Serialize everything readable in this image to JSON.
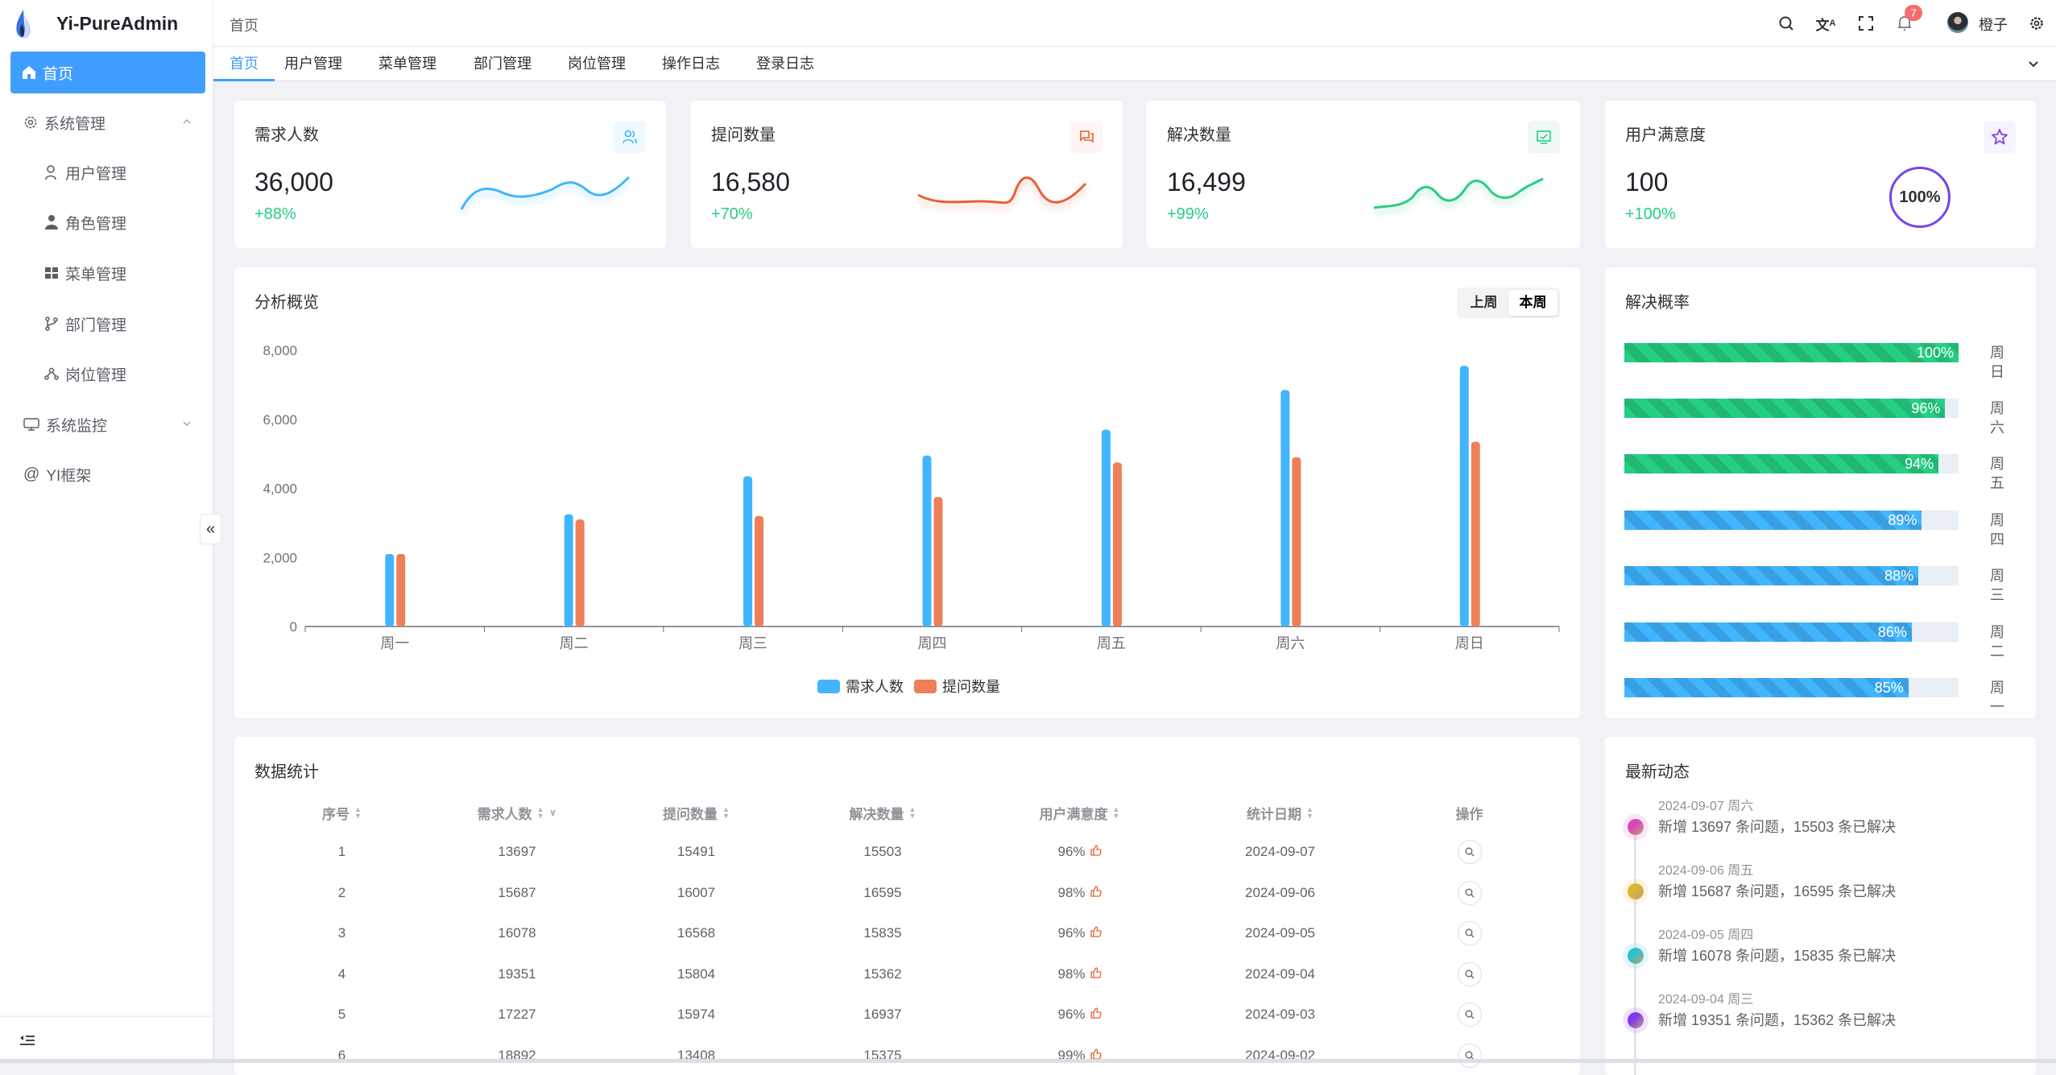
{
  "app": {
    "title": "Yi-PureAdmin"
  },
  "sidebar": {
    "items": [
      {
        "label": "首页",
        "icon": "home-icon",
        "active": true
      },
      {
        "label": "系统管理",
        "icon": "gear-icon",
        "expanded": true
      },
      {
        "label": "用户管理",
        "icon": "user-icon"
      },
      {
        "label": "角色管理",
        "icon": "role-icon"
      },
      {
        "label": "菜单管理",
        "icon": "grid-icon"
      },
      {
        "label": "部门管理",
        "icon": "branch-icon"
      },
      {
        "label": "岗位管理",
        "icon": "network-icon"
      },
      {
        "label": "系统监控",
        "icon": "monitor-icon",
        "expanded": false
      },
      {
        "label": "YI框架",
        "icon": "at-icon"
      }
    ],
    "collapse_icon": "double-chevron-left-icon",
    "footer_icon": "menu-fold-icon"
  },
  "header": {
    "breadcrumb": "首页",
    "notifications": "7",
    "username": "橙子",
    "icons": [
      "search-icon",
      "translate-icon",
      "fullscreen-icon",
      "bell-icon",
      "avatar",
      "settings-icon"
    ]
  },
  "tabs": [
    {
      "label": "首页",
      "active": true
    },
    {
      "label": "用户管理"
    },
    {
      "label": "菜单管理"
    },
    {
      "label": "部门管理"
    },
    {
      "label": "岗位管理"
    },
    {
      "label": "操作日志"
    },
    {
      "label": "登录日志"
    }
  ],
  "stats": [
    {
      "title": "需求人数",
      "value": "36,000",
      "delta": "+88%",
      "color": "#41b6ff",
      "icon": "users-icon"
    },
    {
      "title": "提问数量",
      "value": "16,580",
      "delta": "+70%",
      "color": "#e85f33",
      "icon": "chat-icon"
    },
    {
      "title": "解决数量",
      "value": "16,499",
      "delta": "+99%",
      "color": "#26ce83",
      "icon": "check-chart-icon"
    },
    {
      "title": "用户满意度",
      "value": "100",
      "delta": "+100%",
      "color": "#7846e5",
      "icon": "star-icon",
      "ring": "100%"
    }
  ],
  "overview": {
    "title": "分析概览",
    "toggle": [
      {
        "label": "上周"
      },
      {
        "label": "本周",
        "active": true
      }
    ]
  },
  "chart_data": {
    "type": "bar",
    "categories": [
      "周一",
      "周二",
      "周三",
      "周四",
      "周五",
      "周六",
      "周日"
    ],
    "series": [
      {
        "name": "需求人数",
        "color": "#41b6ff",
        "values": [
          2100,
          3250,
          4350,
          4950,
          5700,
          6850,
          7550
        ]
      },
      {
        "name": "提问数量",
        "color": "#ed8057",
        "values": [
          2100,
          3100,
          3200,
          3750,
          4750,
          4900,
          5350
        ]
      }
    ],
    "yticks": [
      "0",
      "2,000",
      "4,000",
      "6,000",
      "8,000"
    ],
    "ylim": [
      0,
      8000
    ],
    "legend": "bottom",
    "grid": false
  },
  "solve_rate": {
    "title": "解决概率",
    "rows": [
      {
        "day": "周日",
        "pct": "100%",
        "value": 100,
        "color": "#26ce83"
      },
      {
        "day": "周六",
        "pct": "96%",
        "value": 96,
        "color": "#26ce83"
      },
      {
        "day": "周五",
        "pct": "94%",
        "value": 94,
        "color": "#26ce83"
      },
      {
        "day": "周四",
        "pct": "89%",
        "value": 89,
        "color": "#41b6ff"
      },
      {
        "day": "周三",
        "pct": "88%",
        "value": 88,
        "color": "#41b6ff"
      },
      {
        "day": "周二",
        "pct": "86%",
        "value": 86,
        "color": "#41b6ff"
      },
      {
        "day": "周一",
        "pct": "85%",
        "value": 85,
        "color": "#41b6ff"
      }
    ]
  },
  "table": {
    "title": "数据统计",
    "columns": [
      "序号",
      "需求人数",
      "提问数量",
      "解决数量",
      "用户满意度",
      "统计日期",
      "操作"
    ],
    "rows": [
      [
        "1",
        "13697",
        "15491",
        "15503",
        "96%",
        "2024-09-07"
      ],
      [
        "2",
        "15687",
        "16007",
        "16595",
        "98%",
        "2024-09-06"
      ],
      [
        "3",
        "16078",
        "16568",
        "15835",
        "96%",
        "2024-09-05"
      ],
      [
        "4",
        "19351",
        "15804",
        "15362",
        "98%",
        "2024-09-04"
      ],
      [
        "5",
        "17227",
        "15974",
        "16937",
        "96%",
        "2024-09-03"
      ],
      [
        "6",
        "18892",
        "13408",
        "15375",
        "99%",
        "2024-09-02"
      ]
    ]
  },
  "activity": {
    "title": "最新动态",
    "items": [
      {
        "date": "2024-09-07 周六",
        "text": "新增 13697 条问题，15503 条已解决",
        "color": "#d946b6"
      },
      {
        "date": "2024-09-06 周五",
        "text": "新增 15687 条问题，16595 条已解决",
        "color": "#d9b82f"
      },
      {
        "date": "2024-09-05 周四",
        "text": "新增 16078 条问题，15835 条已解决",
        "color": "#2bc0c9"
      },
      {
        "date": "2024-09-04 周三",
        "text": "新增 19351 条问题，15362 条已解决",
        "color": "#7c3aed"
      }
    ]
  }
}
